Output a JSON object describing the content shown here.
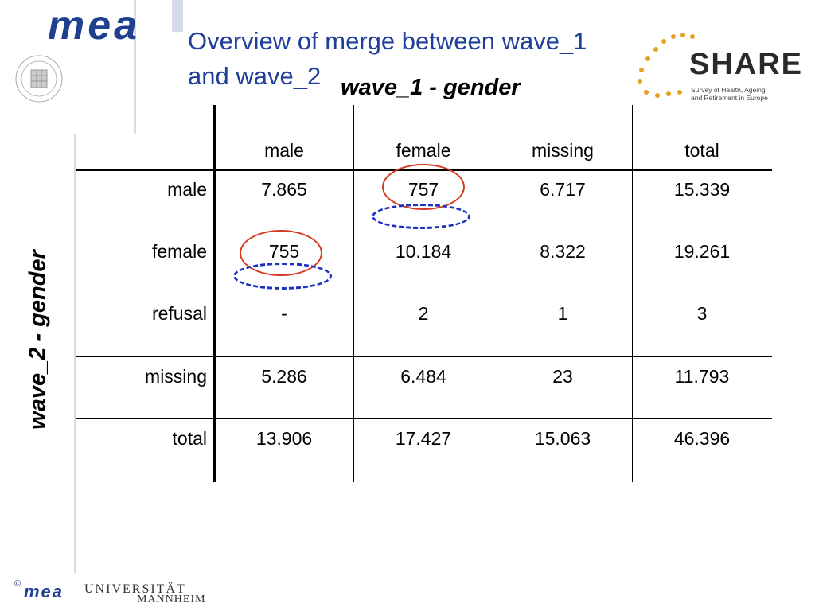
{
  "header": {
    "logo_text": "mea",
    "title_line1": "Overview of merge between wave_1",
    "title_line2": "and wave_2",
    "share_logo": {
      "word": "SHARE",
      "sub1": "Survey of Health, Ageing",
      "sub2": "and Retirement in Europe"
    }
  },
  "table": {
    "col_axis_label": "wave_1 - gender",
    "row_axis_label": "wave_2 - gender",
    "columns": [
      "male",
      "female",
      "missing",
      "total"
    ],
    "rows": [
      {
        "label": "male",
        "values": [
          "7.865",
          "757",
          "6.717",
          "15.339"
        ]
      },
      {
        "label": "female",
        "values": [
          "755",
          "10.184",
          "8.322",
          "19.261"
        ]
      },
      {
        "label": "refusal",
        "values": [
          "-",
          "2",
          "1",
          "3"
        ]
      },
      {
        "label": "missing",
        "values": [
          "5.286",
          "6.484",
          "23",
          "11.793"
        ]
      },
      {
        "label": "total",
        "values": [
          "13.906",
          "17.427",
          "15.063",
          "46.396"
        ]
      }
    ],
    "highlight_colors": {
      "red": "#d63b1f",
      "blue": "#1b2fc4"
    }
  },
  "footer": {
    "copyright": "©",
    "logo_text": "mea",
    "university_line1": "UNIVERSITÄT",
    "university_line2": "MANNHEIM"
  },
  "theme": {
    "title_color": "#1f3f9a",
    "logo_color": "#1f3f8f",
    "frame_color": "#d5dbea"
  }
}
